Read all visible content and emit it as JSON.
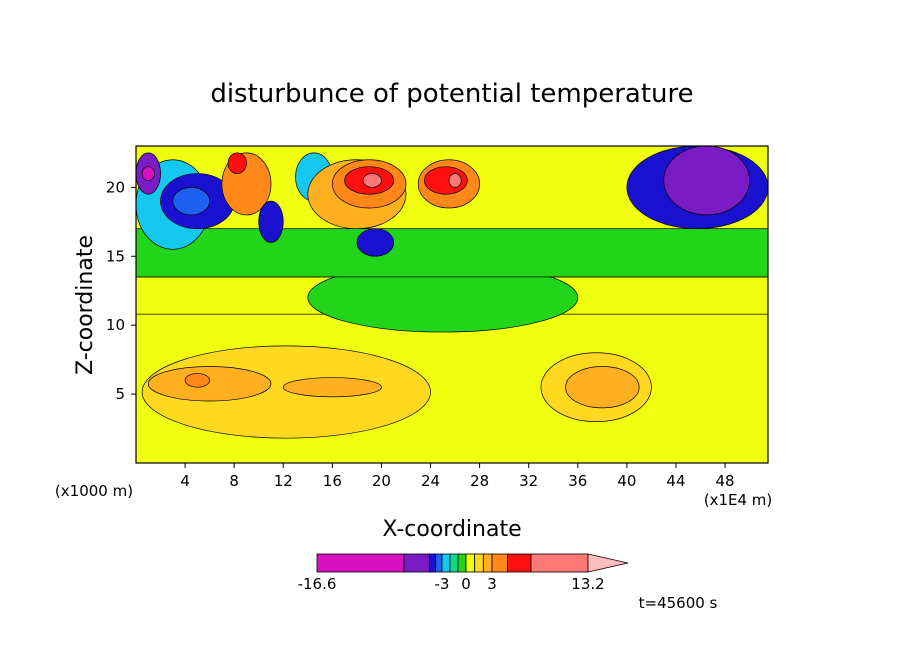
{
  "chart_data": {
    "type": "heatmap",
    "title": "disturbunce of potential temperature",
    "xlabel": "X-coordinate",
    "ylabel": "Z-coordinate",
    "x_unit_left": "(x1000 m)",
    "x_unit_right": "(x1E4 m)",
    "xlim": [
      0,
      51.5
    ],
    "ylim": [
      0,
      23
    ],
    "xticks": [
      4,
      8,
      12,
      16,
      20,
      24,
      28,
      32,
      36,
      40,
      44,
      48
    ],
    "yticks": [
      5,
      10,
      15,
      20
    ],
    "time_label": "t=45600 s",
    "colorbar": {
      "labels": [
        "-16.6",
        "-3",
        "0",
        "3",
        "13.2"
      ],
      "min": -16.6,
      "max": 13.2,
      "segments": [
        {
          "from": -16.6,
          "to": -9,
          "color": "#d810c0"
        },
        {
          "from": -9,
          "to": -5,
          "color": "#7a1cc4"
        },
        {
          "from": -5,
          "to": -4,
          "color": "#1a10d0"
        },
        {
          "from": -4,
          "to": -3,
          "color": "#1e60f0"
        },
        {
          "from": -3,
          "to": -2,
          "color": "#16c8f0"
        },
        {
          "from": -2,
          "to": -1,
          "color": "#10d890"
        },
        {
          "from": -1,
          "to": 0,
          "color": "#22d41a"
        },
        {
          "from": 0,
          "to": 1,
          "color": "#f0ff10"
        },
        {
          "from": 1,
          "to": 2,
          "color": "#ffd820"
        },
        {
          "from": 2,
          "to": 3,
          "color": "#ffb020"
        },
        {
          "from": 3,
          "to": 5,
          "color": "#ff8818"
        },
        {
          "from": 5,
          "to": 8,
          "color": "#ff1010"
        },
        {
          "from": 8,
          "to": 13.2,
          "color": "#ff7878"
        }
      ],
      "overflow_color": "#ffbcbc"
    },
    "field_regions": [
      {
        "x0": 0,
        "x1": 51.5,
        "z0": 0,
        "z1": 10.8,
        "value": 0.5
      },
      {
        "x0": 0,
        "x1": 51.5,
        "z0": 10.8,
        "z1": 13.5,
        "value": 0.5
      },
      {
        "x0": 14,
        "x1": 36,
        "z0": 9.5,
        "z1": 14.5,
        "value": -0.5
      },
      {
        "x0": 0,
        "x1": 51.5,
        "z0": 13.5,
        "z1": 17,
        "value": -0.5
      },
      {
        "x0": 0.5,
        "x1": 24,
        "z0": 1.8,
        "z1": 8.5,
        "value": 1.5
      },
      {
        "x0": 33,
        "x1": 42,
        "z0": 3,
        "z1": 8,
        "value": 1.5
      },
      {
        "x0": 1,
        "x1": 11,
        "z0": 4.5,
        "z1": 7,
        "value": 2.5
      },
      {
        "x0": 4,
        "x1": 6,
        "z0": 5.5,
        "z1": 6.5,
        "value": 4
      },
      {
        "x0": 12,
        "x1": 20,
        "z0": 4.8,
        "z1": 6.2,
        "value": 2.5
      },
      {
        "x0": 35,
        "x1": 41,
        "z0": 4,
        "z1": 7,
        "value": 2.5
      },
      {
        "x0": 0,
        "x1": 6,
        "z0": 15.5,
        "z1": 22,
        "value": -2.5
      },
      {
        "x0": 2,
        "x1": 8,
        "z0": 17,
        "z1": 21,
        "value": -4.5
      },
      {
        "x0": 3,
        "x1": 6,
        "z0": 18,
        "z1": 20,
        "value": -3.5
      },
      {
        "x0": 0,
        "x1": 2,
        "z0": 19.5,
        "z1": 22.5,
        "value": -6
      },
      {
        "x0": 0.5,
        "x1": 1.5,
        "z0": 20.5,
        "z1": 21.5,
        "value": -9.5
      },
      {
        "x0": 7,
        "x1": 11,
        "z0": 18,
        "z1": 22.5,
        "value": 3
      },
      {
        "x0": 7.5,
        "x1": 9,
        "z0": 21,
        "z1": 22.5,
        "value": 6
      },
      {
        "x0": 10,
        "x1": 12,
        "z0": 16,
        "z1": 19,
        "value": -4.5
      },
      {
        "x0": 13,
        "x1": 16,
        "z0": 19,
        "z1": 22.5,
        "value": -2.5
      },
      {
        "x0": 14,
        "x1": 22,
        "z0": 17,
        "z1": 22,
        "value": 2.5
      },
      {
        "x0": 16,
        "x1": 22,
        "z0": 18.5,
        "z1": 22,
        "value": 4
      },
      {
        "x0": 17,
        "x1": 21,
        "z0": 19.5,
        "z1": 21.5,
        "value": 6
      },
      {
        "x0": 18.5,
        "x1": 20,
        "z0": 20,
        "z1": 21,
        "value": 10
      },
      {
        "x0": 23,
        "x1": 28,
        "z0": 18.5,
        "z1": 22,
        "value": 4
      },
      {
        "x0": 23.5,
        "x1": 27,
        "z0": 19.5,
        "z1": 21.5,
        "value": 6
      },
      {
        "x0": 25.5,
        "x1": 26.5,
        "z0": 20,
        "z1": 21,
        "value": 10
      },
      {
        "x0": 18,
        "x1": 21,
        "z0": 15,
        "z1": 17,
        "value": -4.5
      },
      {
        "x0": 40,
        "x1": 51.5,
        "z0": 17,
        "z1": 23,
        "value": -4.5
      },
      {
        "x0": 43,
        "x1": 50,
        "z0": 18,
        "z1": 23,
        "value": -7
      }
    ]
  }
}
